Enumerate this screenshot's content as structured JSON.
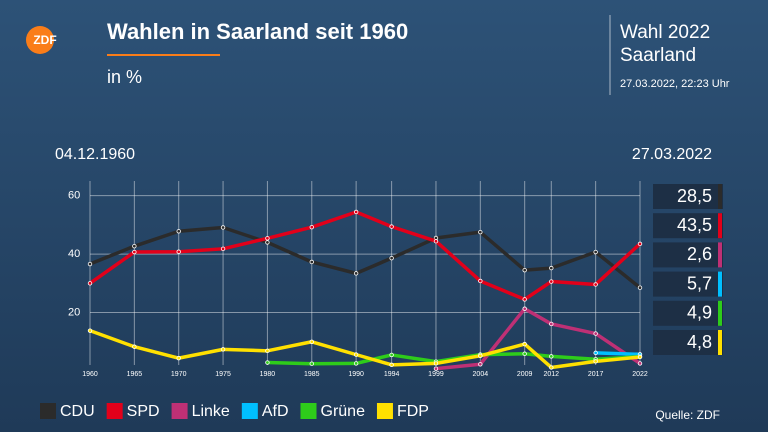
{
  "chart_data": {
    "type": "line",
    "logo": "ZDF",
    "title": "Wahlen in Saarland seit 1960",
    "subtitle": "in %",
    "election": "Wahl 2022",
    "region": "Saarland",
    "timestamp": "27.03.2022, 22:23 Uhr",
    "start_label": "04.12.1960",
    "end_label": "27.03.2022",
    "source": "Quelle: ZDF",
    "x": [
      1960,
      1965,
      1970,
      1975,
      1980,
      1985,
      1990,
      1994,
      1999,
      2004,
      2009,
      2012,
      2017,
      2022
    ],
    "xlim": [
      1960,
      2022
    ],
    "xticks": [
      1960,
      1965,
      1970,
      1975,
      1980,
      1985,
      1990,
      1994,
      1999,
      2004,
      2009,
      2012,
      2017,
      2022
    ],
    "ylim": [
      0,
      65
    ],
    "yticks": [
      20,
      40,
      60
    ],
    "grid": true,
    "series": [
      {
        "name": "CDU",
        "color": "#2b2b2b",
        "values": [
          36.6,
          42.7,
          47.8,
          49.1,
          44.0,
          37.3,
          33.4,
          38.6,
          45.5,
          47.5,
          34.5,
          35.2,
          40.7,
          28.5
        ],
        "value_labels": [
          null,
          null,
          null,
          null,
          null,
          null,
          null,
          null,
          null,
          null,
          null,
          null,
          null,
          "28,5"
        ]
      },
      {
        "name": "SPD",
        "color": "#e2001a",
        "values": [
          30.0,
          40.7,
          40.8,
          41.8,
          45.4,
          49.2,
          54.4,
          49.4,
          44.4,
          30.8,
          24.5,
          30.6,
          29.6,
          43.5
        ],
        "value_labels": [
          null,
          null,
          null,
          null,
          null,
          null,
          null,
          null,
          null,
          null,
          null,
          null,
          null,
          "43,5"
        ]
      },
      {
        "name": "Linke",
        "color": "#be3075",
        "values": [
          null,
          null,
          null,
          null,
          null,
          null,
          null,
          null,
          0.8,
          2.3,
          21.3,
          16.1,
          12.8,
          2.6
        ],
        "value_labels": [
          null,
          null,
          null,
          null,
          null,
          null,
          null,
          null,
          null,
          null,
          null,
          null,
          null,
          "2,6"
        ]
      },
      {
        "name": "AfD",
        "color": "#00bfff",
        "values": [
          null,
          null,
          null,
          null,
          null,
          null,
          null,
          null,
          null,
          null,
          null,
          null,
          6.2,
          5.7
        ],
        "value_labels": [
          null,
          null,
          null,
          null,
          null,
          null,
          null,
          null,
          null,
          null,
          null,
          null,
          null,
          "5,7"
        ]
      },
      {
        "name": "Grüne",
        "color": "#2ecc1a",
        "values": [
          null,
          null,
          null,
          null,
          2.9,
          2.5,
          2.6,
          5.5,
          3.2,
          5.6,
          5.9,
          5.0,
          4.0,
          4.9
        ],
        "value_labels": [
          null,
          null,
          null,
          null,
          null,
          null,
          null,
          null,
          null,
          null,
          null,
          null,
          null,
          "4,9"
        ]
      },
      {
        "name": "FDP",
        "color": "#ffe000",
        "values": [
          13.8,
          8.3,
          4.4,
          7.4,
          6.9,
          10.0,
          5.6,
          2.1,
          2.6,
          5.2,
          9.2,
          1.2,
          3.3,
          4.8
        ],
        "value_labels": [
          null,
          null,
          null,
          null,
          null,
          null,
          null,
          null,
          null,
          null,
          null,
          null,
          null,
          "4,8"
        ]
      }
    ]
  }
}
